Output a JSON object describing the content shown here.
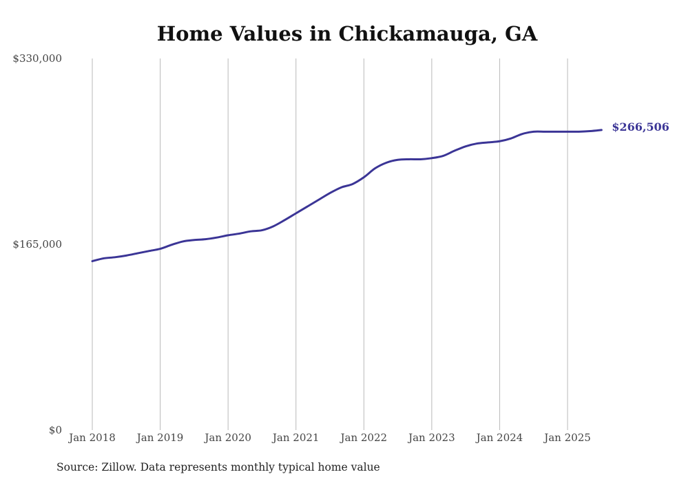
{
  "chart_data": {
    "type": "line",
    "title": "Home Values in Chickamauga, GA",
    "xlabel": "",
    "ylabel": "",
    "ylim": [
      0,
      330000
    ],
    "y_ticks": [
      0,
      165000,
      330000
    ],
    "y_tick_labels": [
      "$0",
      "$165,000",
      "$330,000"
    ],
    "x_ticks": [
      "2018-01",
      "2019-01",
      "2020-01",
      "2021-01",
      "2022-01",
      "2023-01",
      "2024-01",
      "2025-01"
    ],
    "x_tick_labels": [
      "Jan 2018",
      "Jan 2019",
      "Jan 2020",
      "Jan 2021",
      "Jan 2022",
      "Jan 2023",
      "Jan 2024",
      "Jan 2025"
    ],
    "grid": "vertical",
    "series": [
      {
        "color": "#3b3596",
        "points": [
          [
            "2018-01",
            150000
          ],
          [
            "2018-03",
            152500
          ],
          [
            "2018-05",
            153500
          ],
          [
            "2018-07",
            155000
          ],
          [
            "2018-09",
            157000
          ],
          [
            "2018-11",
            159000
          ],
          [
            "2019-01",
            161000
          ],
          [
            "2019-03",
            164500
          ],
          [
            "2019-05",
            167500
          ],
          [
            "2019-07",
            168800
          ],
          [
            "2019-09",
            169500
          ],
          [
            "2019-11",
            171000
          ],
          [
            "2020-01",
            173000
          ],
          [
            "2020-03",
            174500
          ],
          [
            "2020-05",
            176500
          ],
          [
            "2020-07",
            177500
          ],
          [
            "2020-09",
            181000
          ],
          [
            "2020-11",
            186500
          ],
          [
            "2021-01",
            192500
          ],
          [
            "2021-03",
            198500
          ],
          [
            "2021-05",
            204500
          ],
          [
            "2021-07",
            210500
          ],
          [
            "2021-09",
            215500
          ],
          [
            "2021-11",
            218500
          ],
          [
            "2022-01",
            224500
          ],
          [
            "2022-03",
            232500
          ],
          [
            "2022-05",
            237500
          ],
          [
            "2022-07",
            240000
          ],
          [
            "2022-09",
            240500
          ],
          [
            "2022-11",
            240500
          ],
          [
            "2023-01",
            241500
          ],
          [
            "2023-03",
            243500
          ],
          [
            "2023-05",
            248000
          ],
          [
            "2023-07",
            252000
          ],
          [
            "2023-09",
            254500
          ],
          [
            "2023-11",
            255500
          ],
          [
            "2024-01",
            256500
          ],
          [
            "2024-03",
            259000
          ],
          [
            "2024-05",
            263000
          ],
          [
            "2024-07",
            265000
          ],
          [
            "2024-09",
            265000
          ],
          [
            "2024-11",
            265000
          ],
          [
            "2025-01",
            265000
          ],
          [
            "2025-03",
            265000
          ],
          [
            "2025-05",
            265500
          ],
          [
            "2025-07",
            266506
          ]
        ]
      }
    ],
    "end_label": "$266,506",
    "source": "Source: Zillow. Data represents monthly typical home value"
  }
}
